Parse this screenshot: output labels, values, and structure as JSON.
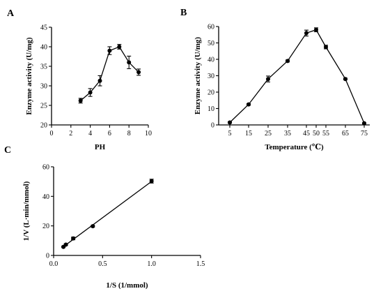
{
  "chart_data": [
    {
      "panel_label": "A",
      "type": "line",
      "xlabel": "PH",
      "ylabel": "Enzyme activity (U/mg)",
      "xlim": [
        0,
        10
      ],
      "ylim": [
        20,
        45
      ],
      "xticks": [
        0,
        2,
        4,
        6,
        8,
        10
      ],
      "yticks": [
        20,
        25,
        30,
        35,
        40,
        45
      ],
      "series": [
        {
          "x": [
            3,
            4,
            5,
            6,
            7,
            8,
            9
          ],
          "y": [
            26.2,
            28.3,
            31.3,
            39.0,
            40.0,
            36.0,
            33.5
          ],
          "err": [
            0.6,
            1.0,
            1.3,
            1.0,
            0.6,
            1.6,
            0.8
          ]
        }
      ],
      "grid": false,
      "fit_line": false
    },
    {
      "panel_label": "B",
      "type": "line",
      "xlabel": "Temperature (℃)",
      "ylabel": "Enzyme activity (U/mg)",
      "ylim": [
        0,
        60
      ],
      "xticks": [
        5,
        15,
        25,
        35,
        45,
        50,
        55,
        65,
        75
      ],
      "yticks": [
        0,
        10,
        20,
        30,
        40,
        50,
        60
      ],
      "series": [
        {
          "x": [
            5,
            15,
            25,
            35,
            45,
            50,
            55,
            65,
            75
          ],
          "y": [
            1.5,
            12.5,
            28.0,
            39.0,
            56.0,
            58.0,
            47.5,
            28.0,
            1.0
          ],
          "err": [
            0.4,
            0.5,
            1.8,
            0.6,
            1.8,
            1.2,
            1.1,
            0.5,
            0.3
          ]
        }
      ],
      "grid": false,
      "fit_line": false
    },
    {
      "panel_label": "C",
      "type": "scatter",
      "xlabel": "1/S (1/mmol)",
      "ylabel": "1/V (L·min/mmol)",
      "xlim": [
        0,
        1.5
      ],
      "ylim": [
        0,
        60
      ],
      "xticks": [
        0.0,
        0.5,
        1.0,
        1.5
      ],
      "xtick_labels": [
        "0.0",
        "0.5",
        "1.0",
        "1.5"
      ],
      "yticks": [
        0,
        20,
        40,
        60
      ],
      "series": [
        {
          "x": [
            0.1,
            0.125,
            0.2,
            0.4,
            1.0
          ],
          "y": [
            5.8,
            7.3,
            11.5,
            19.8,
            50.3
          ],
          "err": [
            0.4,
            0.5,
            0.9,
            0.6,
            1.3
          ]
        }
      ],
      "grid": false,
      "fit_line": true
    }
  ]
}
